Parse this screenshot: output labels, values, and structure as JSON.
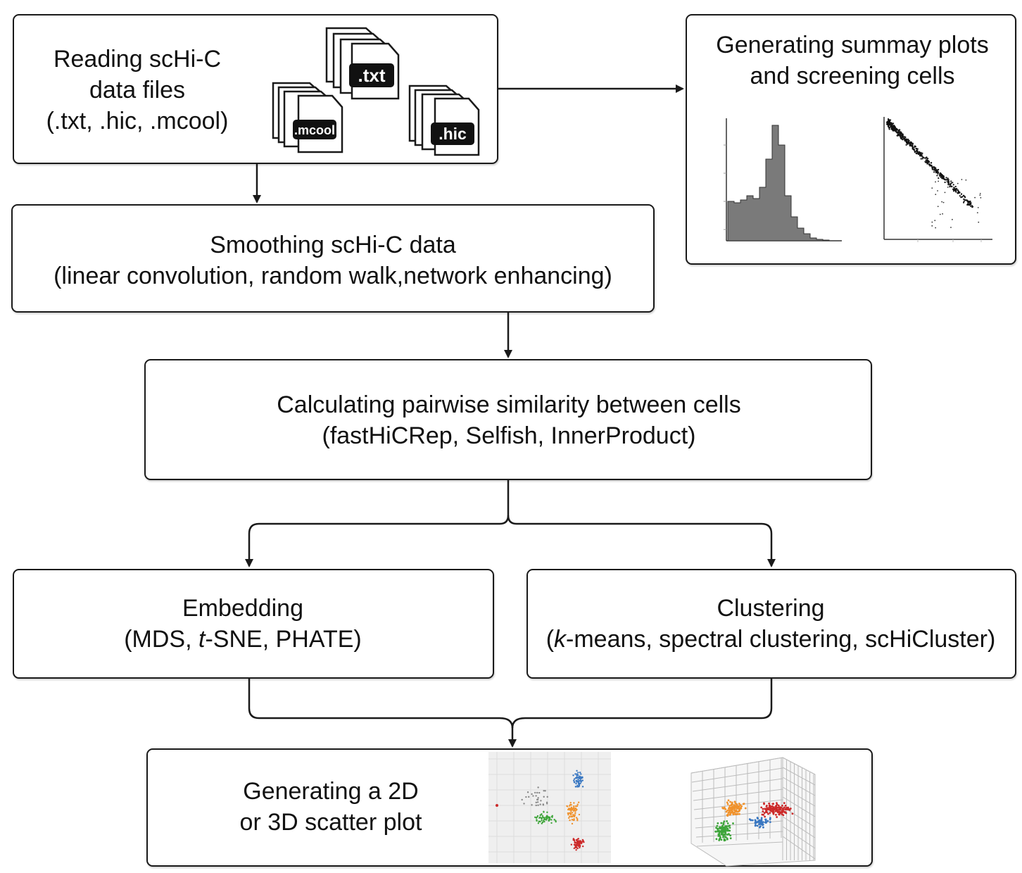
{
  "nodes": {
    "reading": {
      "lines": [
        "Reading scHi-C",
        "data files",
        "(.txt, .hic, .mcool)"
      ]
    },
    "files": {
      "txt": ".txt",
      "mcool": ".mcool",
      "hic": ".hic"
    },
    "summary": {
      "lines": [
        "Generating summay plots",
        "and screening cells"
      ]
    },
    "smoothing": {
      "lines": [
        "Smoothing scHi-C data",
        "(linear convolution, random walk,network enhancing)"
      ]
    },
    "similarity": {
      "lines": [
        "Calculating pairwise similarity between cells",
        "(fastHiCRep, Selfish, InnerProduct)"
      ]
    },
    "embedding": {
      "title": "Embedding",
      "open": "(MDS, ",
      "italic": "t",
      "rest": "-SNE, PHATE)"
    },
    "clustering": {
      "title": "Clustering",
      "open": "(",
      "italic": "k",
      "rest": "-means, spectral clustering, scHiCluster)"
    },
    "scatter": {
      "lines": [
        "Generating a 2D",
        "or 3D scatter plot"
      ]
    }
  },
  "colors": {
    "stroke": "#1a1a1a",
    "histogram_fill": "#7a7a7a",
    "cluster_blue": "#3a78c2",
    "cluster_orange": "#f0922c",
    "cluster_green": "#3ea53a",
    "cluster_red": "#cc2a2a"
  }
}
